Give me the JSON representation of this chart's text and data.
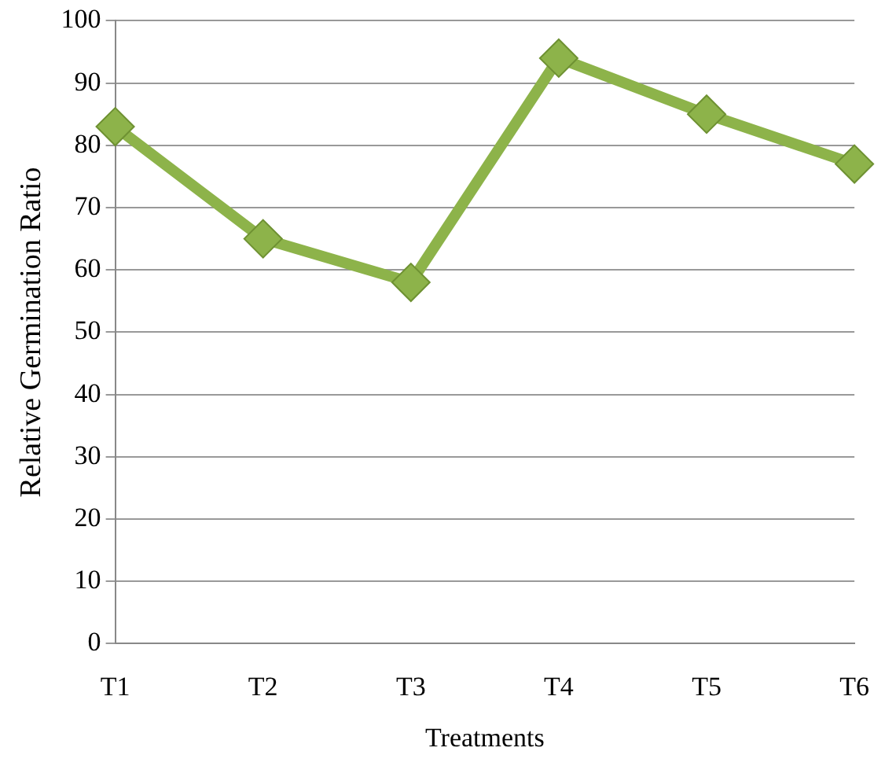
{
  "chart_data": {
    "type": "line",
    "xlabel": "Treatments",
    "ylabel": "Relative Germination Ratio",
    "categories": [
      "T1",
      "T2",
      "T3",
      "T4",
      "T5",
      "T6"
    ],
    "series": [
      {
        "color": "#8db34a",
        "values": [
          83,
          65,
          58,
          94,
          85,
          77
        ]
      }
    ],
    "ylim": [
      0,
      100
    ],
    "yticks": [
      0,
      10,
      20,
      30,
      40,
      50,
      60,
      70,
      80,
      90,
      100
    ],
    "grid": "y",
    "legend": false,
    "marker": "diamond",
    "line_style": "solid"
  }
}
